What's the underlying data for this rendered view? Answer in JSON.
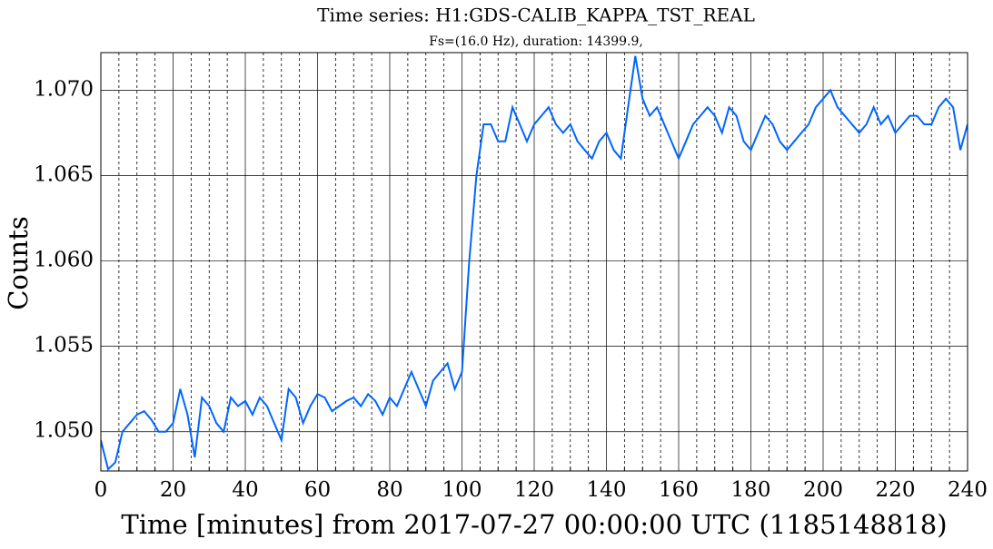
{
  "chart_data": {
    "type": "line",
    "title": "Time series:  H1:GDS-CALIB_KAPPA_TST_REAL",
    "subtitle": "Fs=(16.0 Hz), duration: 14399.9,",
    "xlabel": "Time [minutes] from 2017-07-27 00:00:00 UTC (1185148818)",
    "ylabel": "Counts",
    "xlim": [
      0,
      240
    ],
    "ylim": [
      1.0477,
      1.0722
    ],
    "xticks": [
      0,
      20,
      40,
      60,
      80,
      100,
      120,
      140,
      160,
      180,
      200,
      220,
      240
    ],
    "xminorticks": [
      5,
      10,
      15,
      25,
      30,
      35,
      45,
      50,
      55,
      65,
      70,
      75,
      85,
      90,
      95,
      105,
      110,
      115,
      125,
      130,
      135,
      145,
      150,
      155,
      165,
      170,
      175,
      185,
      190,
      195,
      205,
      210,
      215,
      225,
      230,
      235
    ],
    "yticks": [
      {
        "value": 1.05,
        "label": "1.050"
      },
      {
        "value": 1.055,
        "label": "1.055"
      },
      {
        "value": 1.06,
        "label": "1.060"
      },
      {
        "value": 1.065,
        "label": "1.065"
      },
      {
        "value": 1.07,
        "label": "1.070"
      }
    ],
    "grid": true,
    "x": [
      0,
      2,
      4,
      6,
      8,
      10,
      12,
      14,
      16,
      18,
      20,
      22,
      24,
      26,
      28,
      30,
      32,
      34,
      36,
      38,
      40,
      42,
      44,
      46,
      48,
      50,
      52,
      54,
      56,
      58,
      60,
      62,
      64,
      66,
      68,
      70,
      72,
      74,
      76,
      78,
      80,
      82,
      84,
      86,
      88,
      90,
      92,
      94,
      96,
      98,
      100,
      102,
      104,
      106,
      108,
      110,
      112,
      114,
      116,
      118,
      120,
      122,
      124,
      126,
      128,
      130,
      132,
      134,
      136,
      138,
      140,
      142,
      144,
      146,
      148,
      150,
      152,
      154,
      156,
      158,
      160,
      162,
      164,
      166,
      168,
      170,
      172,
      174,
      176,
      178,
      180,
      182,
      184,
      186,
      188,
      190,
      192,
      194,
      196,
      198,
      200,
      202,
      204,
      206,
      208,
      210,
      212,
      214,
      216,
      218,
      220,
      222,
      224,
      226,
      228,
      230,
      232,
      234,
      236,
      238,
      240
    ],
    "series": [
      {
        "name": "H1:GDS-CALIB_KAPPA_TST_REAL",
        "color": "#0066ff",
        "values": [
          1.0495,
          1.0478,
          1.0482,
          1.05,
          1.0505,
          1.051,
          1.0512,
          1.0507,
          1.05,
          1.05,
          1.0505,
          1.0525,
          1.051,
          1.0485,
          1.052,
          1.0515,
          1.0505,
          1.05,
          1.052,
          1.0515,
          1.0518,
          1.051,
          1.052,
          1.0515,
          1.0505,
          1.0495,
          1.0525,
          1.052,
          1.0505,
          1.0515,
          1.0522,
          1.052,
          1.0512,
          1.0515,
          1.0518,
          1.052,
          1.0515,
          1.0522,
          1.0518,
          1.051,
          1.052,
          1.0515,
          1.0525,
          1.0535,
          1.0525,
          1.0515,
          1.053,
          1.0535,
          1.054,
          1.0525,
          1.0535,
          1.06,
          1.065,
          1.068,
          1.068,
          1.067,
          1.067,
          1.069,
          1.068,
          1.067,
          1.068,
          1.0685,
          1.069,
          1.068,
          1.0675,
          1.068,
          1.067,
          1.0665,
          1.066,
          1.067,
          1.0675,
          1.0665,
          1.066,
          1.069,
          1.072,
          1.0695,
          1.0685,
          1.069,
          1.068,
          1.067,
          1.066,
          1.067,
          1.068,
          1.0685,
          1.069,
          1.0685,
          1.0675,
          1.069,
          1.0685,
          1.067,
          1.0665,
          1.0675,
          1.0685,
          1.068,
          1.067,
          1.0665,
          1.067,
          1.0675,
          1.068,
          1.069,
          1.0695,
          1.07,
          1.069,
          1.0685,
          1.068,
          1.0675,
          1.068,
          1.069,
          1.068,
          1.0685,
          1.0675,
          1.068,
          1.0685,
          1.0685,
          1.068,
          1.068,
          1.069,
          1.0695,
          1.069,
          1.0665,
          1.068
        ]
      }
    ]
  }
}
